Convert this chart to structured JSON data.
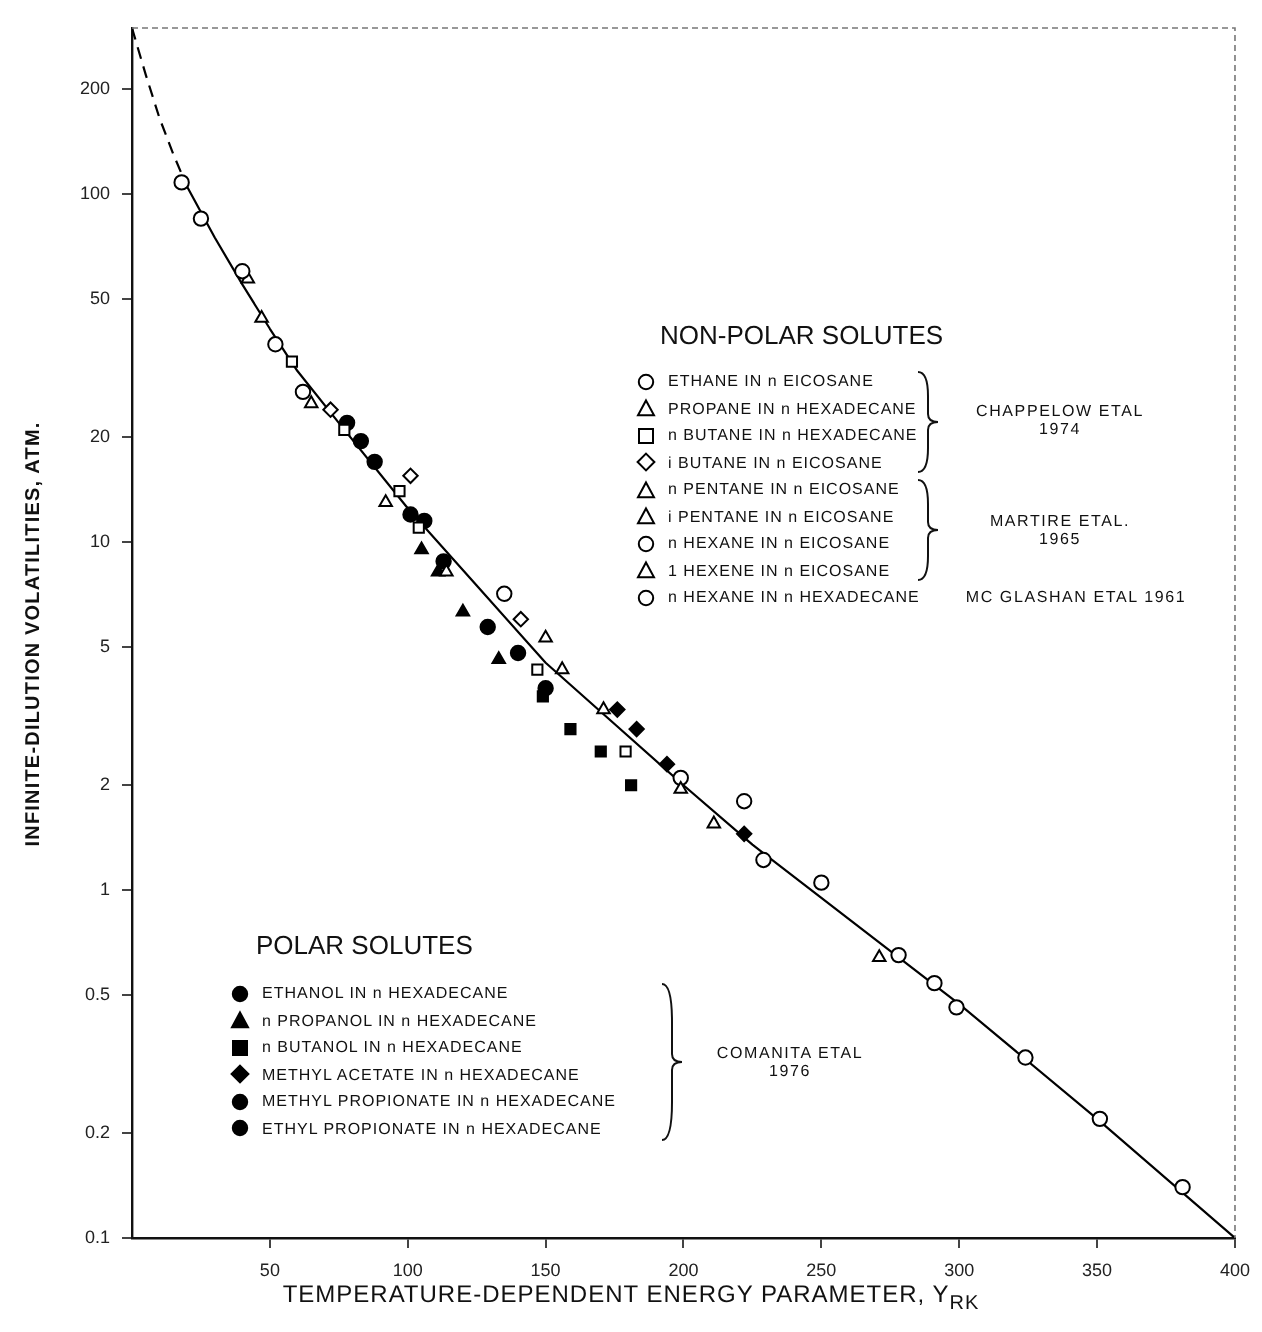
{
  "chart_data": {
    "type": "scatter",
    "xlabel": "TEMPERATURE-DEPENDENT ENERGY PARAMETER, Y$_{RK}$",
    "ylabel": "INFINITE-DILUTION VOLATILITIES, ATM.",
    "xlim": [
      0,
      400
    ],
    "xticks": [
      50,
      100,
      150,
      200,
      250,
      300,
      350,
      400
    ],
    "ylim": [
      0.1,
      300
    ],
    "yticks": [
      0.1,
      0.2,
      0.5,
      1,
      2,
      5,
      10,
      20,
      50,
      100,
      200
    ],
    "log": "y",
    "legend": "bottom left",
    "annotations": [
      "NON-POLAR SOLUTES",
      "CHAPPELOW ETAL\n1974",
      "MARTIRE ETAL.\n1965",
      "MC GLASHAN ETAL 1961",
      "POLAR SOLUTES",
      "COMANITA ETAL\n1976"
    ],
    "series": [
      {
        "name": "ETHANE IN n EICOSANE",
        "marker": "circle",
        "color": "#ffffff",
        "x": [
          18,
          25,
          40,
          52,
          62,
          135,
          229,
          278,
          299,
          351,
          381
        ],
        "values": [
          108,
          85,
          60,
          37,
          27,
          7.1,
          1.22,
          0.65,
          0.46,
          0.22,
          0.14
        ]
      },
      {
        "name": "PROPANE IN n HEXADECANE",
        "marker": "triangle",
        "color": "#ffffff",
        "x": [
          65,
          92,
          150,
          199
        ],
        "values": [
          25,
          13,
          5.3,
          1.95
        ]
      },
      {
        "name": "n BUTANE IN n HEXADECANE",
        "marker": "square",
        "color": "#ffffff",
        "x": [
          58,
          77,
          97,
          104,
          147,
          179
        ],
        "values": [
          33,
          21,
          14,
          11,
          4.3,
          2.5
        ]
      },
      {
        "name": "i BUTANE IN n EICOSANE",
        "marker": "diamond",
        "color": "#ffffff",
        "x": [
          72,
          101,
          141
        ],
        "values": [
          24,
          15.5,
          6
        ]
      },
      {
        "name": "n PENTANE IN n EICOSANE",
        "marker": "triangle",
        "color": "#ffffff",
        "x": [
          47,
          114,
          156
        ],
        "values": [
          44,
          8.2,
          4.3
        ]
      },
      {
        "name": "i PENTANE IN n EICOSANE",
        "marker": "triangle",
        "color": "#ffffff",
        "x": [
          171,
          211,
          271
        ],
        "values": [
          3.3,
          1.55,
          0.64
        ]
      },
      {
        "name": "n HEXANE IN n EICOSANE",
        "marker": "circle",
        "color": "#ffffff",
        "x": [
          199,
          222,
          250,
          291
        ],
        "values": [
          2.1,
          1.8,
          1.05,
          0.54
        ]
      },
      {
        "name": "1 HEXENE IN n EICOSANE",
        "marker": "triangle",
        "color": "#ffffff",
        "x": [
          42
        ],
        "values": [
          57
        ]
      },
      {
        "name": "n HEXANE IN n HEXADECANE",
        "marker": "circle",
        "color": "#ffffff",
        "x": [
          324
        ],
        "values": [
          0.33
        ]
      },
      {
        "type": "line",
        "marker": "none",
        "line_style": "dashed",
        "color": "#000000",
        "x": [
          0,
          5,
          10,
          15,
          20
        ],
        "values": [
          300,
          220,
          165,
          130,
          105
        ]
      },
      {
        "type": "line",
        "marker": "none",
        "line_style": "solid",
        "color": "#000000",
        "x": [
          20,
          30,
          40,
          50,
          60,
          75,
          100,
          125,
          150,
          175,
          200,
          225,
          250,
          300,
          350,
          400
        ],
        "values": [
          105,
          75,
          55,
          41,
          31,
          22,
          12.5,
          7.5,
          4.5,
          3,
          2,
          1.35,
          0.95,
          0.47,
          0.22,
          0.1
        ]
      },
      {
        "name": "ETHANOL IN n HEXADECANE",
        "marker": "circle",
        "color": "#000000",
        "x": [
          78,
          83,
          88
        ],
        "values": [
          22,
          19.5,
          17
        ]
      },
      {
        "name": "n PROPANOL IN n HEXADECANE",
        "marker": "triangle",
        "color": "#000000",
        "x": [
          105,
          111,
          120,
          133
        ],
        "values": [
          9.5,
          8.2,
          6.3,
          4.6
        ]
      },
      {
        "name": "n BUTANOL IN n HEXADECANE",
        "marker": "square",
        "color": "#000000",
        "x": [
          149,
          159,
          170,
          181
        ],
        "values": [
          3.6,
          2.9,
          2.5,
          2.0
        ]
      },
      {
        "name": "METHYL ACETATE IN n HEXADECANE",
        "marker": "diamond",
        "color": "#000000",
        "x": [
          176,
          183,
          194,
          222
        ],
        "values": [
          3.3,
          2.9,
          2.3,
          1.45
        ]
      },
      {
        "name": "METHYL PROPIONATE IN n HEXADECANE",
        "marker": "circle",
        "color": "#000000",
        "x": [
          101,
          106,
          113
        ],
        "values": [
          12,
          11.5,
          8.8
        ]
      },
      {
        "name": "ETHYL PROPIONATE IN n HEXADECANE",
        "marker": "circle",
        "color": "#000000",
        "x": [
          129,
          140,
          150
        ],
        "values": [
          5.7,
          4.8,
          3.8
        ]
      }
    ]
  }
}
